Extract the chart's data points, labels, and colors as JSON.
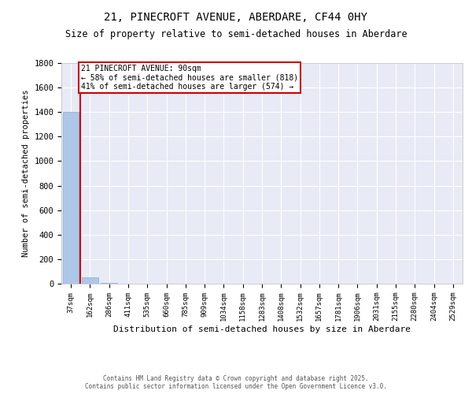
{
  "title": "21, PINECROFT AVENUE, ABERDARE, CF44 0HY",
  "subtitle": "Size of property relative to semi-detached houses in Aberdare",
  "xlabel": "Distribution of semi-detached houses by size in Aberdare",
  "ylabel": "Number of semi-detached properties",
  "categories": [
    "37sqm",
    "162sqm",
    "286sqm",
    "411sqm",
    "535sqm",
    "660sqm",
    "785sqm",
    "909sqm",
    "1034sqm",
    "1158sqm",
    "1283sqm",
    "1408sqm",
    "1532sqm",
    "1657sqm",
    "1781sqm",
    "1906sqm",
    "2031sqm",
    "2155sqm",
    "2280sqm",
    "2404sqm",
    "2529sqm"
  ],
  "values": [
    1400,
    50,
    5,
    2,
    1,
    1,
    0,
    0,
    0,
    0,
    0,
    0,
    0,
    0,
    0,
    0,
    0,
    0,
    0,
    0,
    0
  ],
  "bar_color": "#aec6e8",
  "bar_edge_color": "#7aafd4",
  "annotation_text": "21 PINECROFT AVENUE: 90sqm\n← 58% of semi-detached houses are smaller (818)\n41% of semi-detached houses are larger (574) →",
  "ylim": [
    0,
    1800
  ],
  "yticks": [
    0,
    200,
    400,
    600,
    800,
    1000,
    1200,
    1400,
    1600,
    1800
  ],
  "background_color": "#e8eaf6",
  "grid_color": "#ffffff",
  "footer_line1": "Contains HM Land Registry data © Crown copyright and database right 2025.",
  "footer_line2": "Contains public sector information licensed under the Open Government Licence v3.0.",
  "title_fontsize": 10,
  "subtitle_fontsize": 8.5,
  "annotation_fontsize": 7,
  "annotation_box_color": "#ffffff",
  "annotation_box_edge": "#cc0000",
  "red_line_color": "#cc0000",
  "red_line_x": 0.5,
  "footer_fontsize": 5.5
}
